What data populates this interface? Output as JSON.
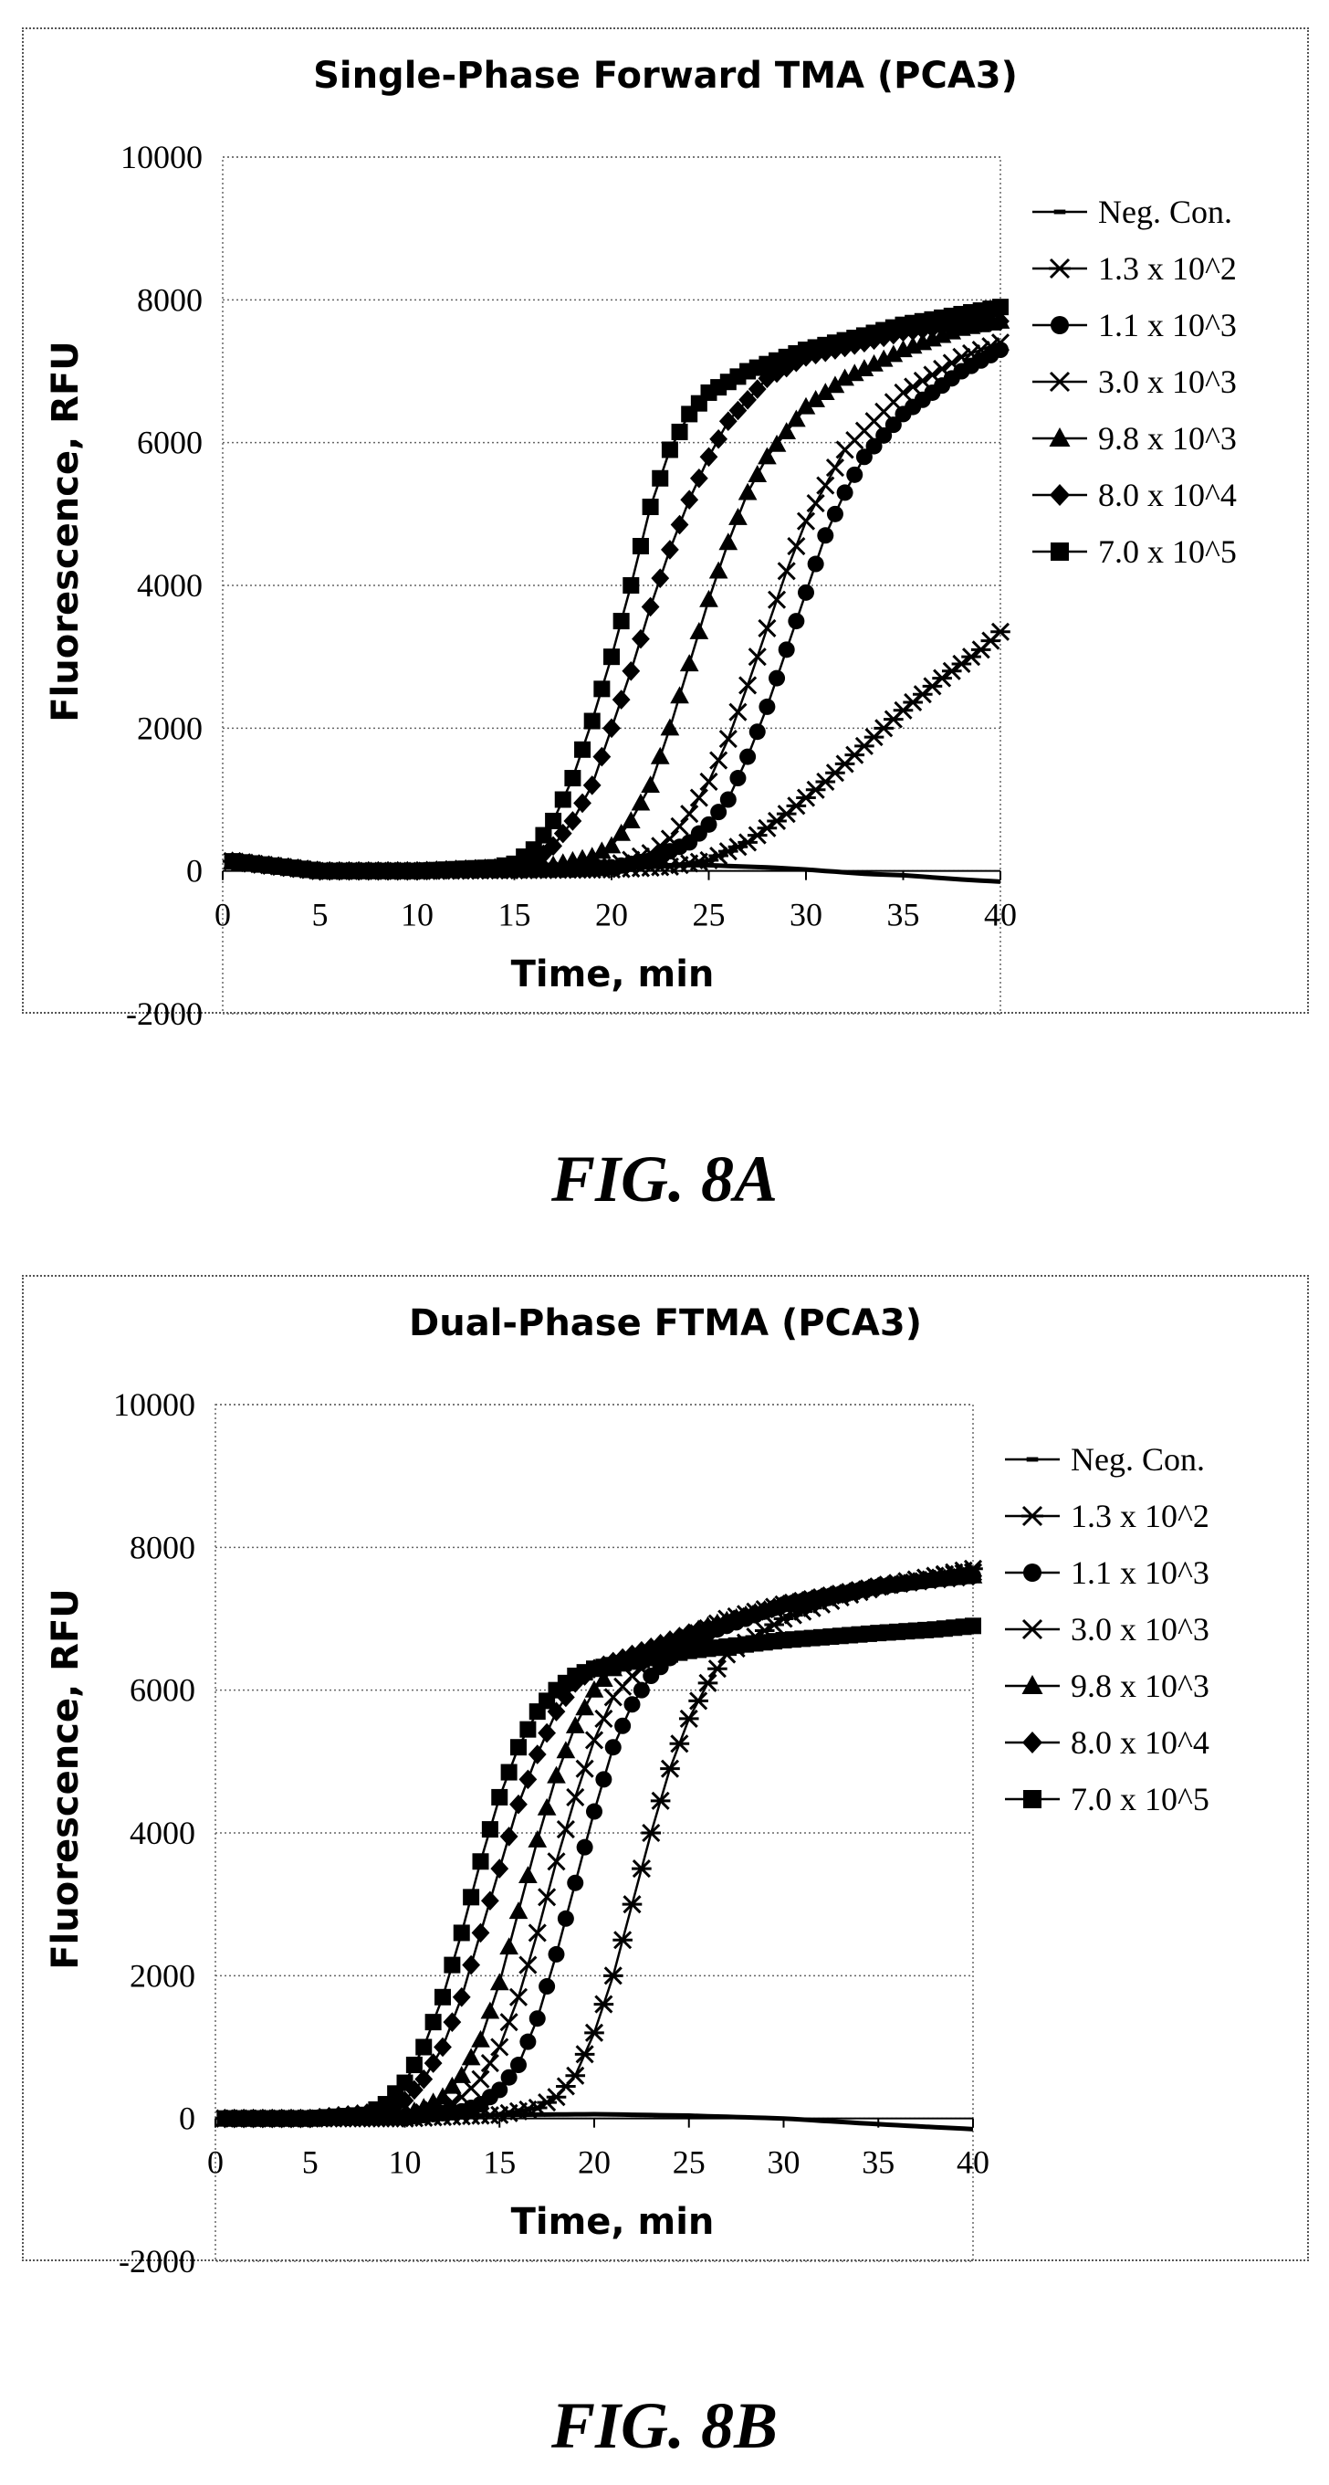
{
  "figures": [
    {
      "caption": "FIG. 8A"
    },
    {
      "caption": "FIG. 8B"
    }
  ],
  "chart_data": [
    {
      "type": "line",
      "title": "Single-Phase Forward TMA (PCA3)",
      "xlabel": "Time, min",
      "ylabel": "Fluorescence, RFU",
      "xlim": [
        0,
        40
      ],
      "ylim": [
        -2000,
        10000
      ],
      "xticks": [
        0,
        5,
        10,
        15,
        20,
        25,
        30,
        35,
        40
      ],
      "yticks": [
        -2000,
        0,
        2000,
        4000,
        6000,
        8000,
        10000
      ],
      "grid": true,
      "legend_position": "right",
      "color": "#000000",
      "series": [
        {
          "name": "Neg. Con.",
          "marker": "dash",
          "x": [
            0,
            5,
            10,
            15,
            20,
            22,
            25,
            28,
            30,
            33,
            35,
            38,
            40
          ],
          "y": [
            100,
            0,
            0,
            20,
            50,
            80,
            80,
            50,
            20,
            -40,
            -60,
            -120,
            -150
          ]
        },
        {
          "name": "1.3 x 10^2",
          "marker": "asterisk",
          "x": [
            0,
            5,
            10,
            15,
            20,
            23,
            25,
            27,
            29,
            31,
            33,
            35,
            37,
            39,
            40
          ],
          "y": [
            150,
            0,
            0,
            10,
            20,
            60,
            150,
            400,
            800,
            1250,
            1750,
            2250,
            2700,
            3100,
            3350
          ]
        },
        {
          "name": "1.1 x 10^3",
          "marker": "circle",
          "x": [
            0,
            5,
            10,
            15,
            18,
            20,
            22,
            24,
            25,
            26,
            27,
            28,
            29,
            30,
            31,
            32,
            33,
            35,
            38,
            40
          ],
          "y": [
            150,
            0,
            0,
            10,
            20,
            50,
            150,
            400,
            650,
            1000,
            1600,
            2300,
            3100,
            3900,
            4700,
            5300,
            5800,
            6400,
            7000,
            7300
          ]
        },
        {
          "name": "3.0 x 10^3",
          "marker": "x",
          "x": [
            0,
            5,
            10,
            15,
            18,
            20,
            22,
            23,
            24,
            25,
            26,
            27,
            28,
            29,
            30,
            31,
            32,
            35,
            38,
            40
          ],
          "y": [
            150,
            0,
            0,
            10,
            20,
            60,
            250,
            450,
            800,
            1250,
            1850,
            2600,
            3400,
            4200,
            4900,
            5400,
            5900,
            6700,
            7200,
            7400
          ]
        },
        {
          "name": "9.8 x 10^3",
          "marker": "triangle",
          "x": [
            0,
            5,
            10,
            15,
            17,
            19,
            20,
            21,
            22,
            23,
            24,
            25,
            26,
            27,
            28,
            30,
            32,
            35,
            38,
            40
          ],
          "y": [
            150,
            0,
            0,
            20,
            80,
            200,
            350,
            700,
            1200,
            2000,
            2900,
            3800,
            4600,
            5300,
            5800,
            6500,
            6900,
            7300,
            7600,
            7700
          ]
        },
        {
          "name": "8.0 x 10^4",
          "marker": "diamond",
          "x": [
            0,
            5,
            10,
            15,
            16,
            17,
            18,
            19,
            20,
            21,
            22,
            23,
            24,
            25,
            26,
            28,
            30,
            33,
            35,
            38,
            40
          ],
          "y": [
            150,
            0,
            0,
            50,
            120,
            350,
            700,
            1200,
            2000,
            2800,
            3700,
            4500,
            5200,
            5800,
            6300,
            6900,
            7200,
            7400,
            7550,
            7650,
            7700
          ]
        },
        {
          "name": "7.0 x 10^5",
          "marker": "square",
          "x": [
            0,
            5,
            10,
            14,
            15,
            16,
            17,
            18,
            19,
            20,
            21,
            22,
            23,
            24,
            25,
            27,
            30,
            33,
            35,
            38,
            40
          ],
          "y": [
            150,
            0,
            0,
            50,
            100,
            300,
            700,
            1300,
            2100,
            3000,
            4000,
            5100,
            5900,
            6400,
            6700,
            7000,
            7300,
            7500,
            7650,
            7800,
            7900
          ]
        }
      ]
    },
    {
      "type": "line",
      "title": "Dual-Phase FTMA (PCA3)",
      "xlabel": "Time, min",
      "ylabel": "Fluorescence, RFU",
      "xlim": [
        0,
        40
      ],
      "ylim": [
        -2000,
        10000
      ],
      "xticks": [
        0,
        5,
        10,
        15,
        20,
        25,
        30,
        35,
        40
      ],
      "yticks": [
        -2000,
        0,
        2000,
        4000,
        6000,
        8000,
        10000
      ],
      "grid": true,
      "legend_position": "right",
      "color": "#000000",
      "series": [
        {
          "name": "Neg. Con.",
          "marker": "dash",
          "x": [
            0,
            5,
            10,
            15,
            20,
            25,
            30,
            35,
            40
          ],
          "y": [
            -50,
            -20,
            20,
            50,
            60,
            40,
            0,
            -80,
            -150
          ]
        },
        {
          "name": "1.3 x 10^2",
          "marker": "asterisk",
          "x": [
            0,
            5,
            10,
            15,
            17,
            18,
            19,
            20,
            21,
            22,
            23,
            24,
            25,
            26,
            27,
            30,
            33,
            35,
            38,
            40
          ],
          "y": [
            0,
            0,
            0,
            50,
            150,
            300,
            600,
            1200,
            2000,
            3000,
            4000,
            4900,
            5600,
            6100,
            6500,
            7000,
            7300,
            7450,
            7600,
            7700
          ]
        },
        {
          "name": "1.1 x 10^3",
          "marker": "circle",
          "x": [
            0,
            5,
            10,
            13,
            14,
            15,
            16,
            17,
            18,
            19,
            20,
            21,
            22,
            23,
            25,
            28,
            30,
            35,
            38,
            40
          ],
          "y": [
            0,
            0,
            20,
            100,
            200,
            400,
            750,
            1400,
            2300,
            3300,
            4300,
            5200,
            5800,
            6200,
            6700,
            7000,
            7200,
            7450,
            7550,
            7600
          ]
        },
        {
          "name": "3.0 x 10^3",
          "marker": "x",
          "x": [
            0,
            5,
            10,
            12,
            13,
            14,
            15,
            16,
            17,
            18,
            19,
            20,
            21,
            22,
            24,
            27,
            30,
            35,
            38,
            40
          ],
          "y": [
            0,
            0,
            20,
            150,
            300,
            550,
            1000,
            1700,
            2600,
            3600,
            4500,
            5300,
            5900,
            6200,
            6600,
            7000,
            7200,
            7450,
            7600,
            7650
          ]
        },
        {
          "name": "9.8 x 10^3",
          "marker": "triangle",
          "x": [
            0,
            5,
            10,
            11,
            12,
            13,
            14,
            15,
            16,
            17,
            18,
            19,
            20,
            21,
            23,
            26,
            30,
            35,
            38,
            40
          ],
          "y": [
            0,
            0,
            50,
            150,
            300,
            600,
            1100,
            1900,
            2900,
            3900,
            4800,
            5500,
            6000,
            6300,
            6600,
            6900,
            7200,
            7450,
            7550,
            7600
          ]
        },
        {
          "name": "8.0 x 10^4",
          "marker": "diamond",
          "x": [
            0,
            5,
            9,
            10,
            11,
            12,
            13,
            14,
            15,
            16,
            17,
            18,
            19,
            20,
            22,
            25,
            30,
            35,
            38,
            40
          ],
          "y": [
            0,
            0,
            100,
            250,
            550,
            1000,
            1700,
            2600,
            3500,
            4400,
            5100,
            5700,
            6100,
            6300,
            6500,
            6800,
            7200,
            7450,
            7550,
            7600
          ]
        },
        {
          "name": "7.0 x 10^5",
          "marker": "square",
          "x": [
            0,
            5,
            8,
            9,
            10,
            11,
            12,
            13,
            14,
            15,
            16,
            17,
            18,
            19,
            20,
            22,
            25,
            30,
            35,
            38,
            40
          ],
          "y": [
            0,
            0,
            50,
            200,
            500,
            1000,
            1700,
            2600,
            3600,
            4500,
            5200,
            5700,
            6000,
            6200,
            6300,
            6400,
            6550,
            6700,
            6800,
            6850,
            6900
          ]
        }
      ]
    }
  ]
}
